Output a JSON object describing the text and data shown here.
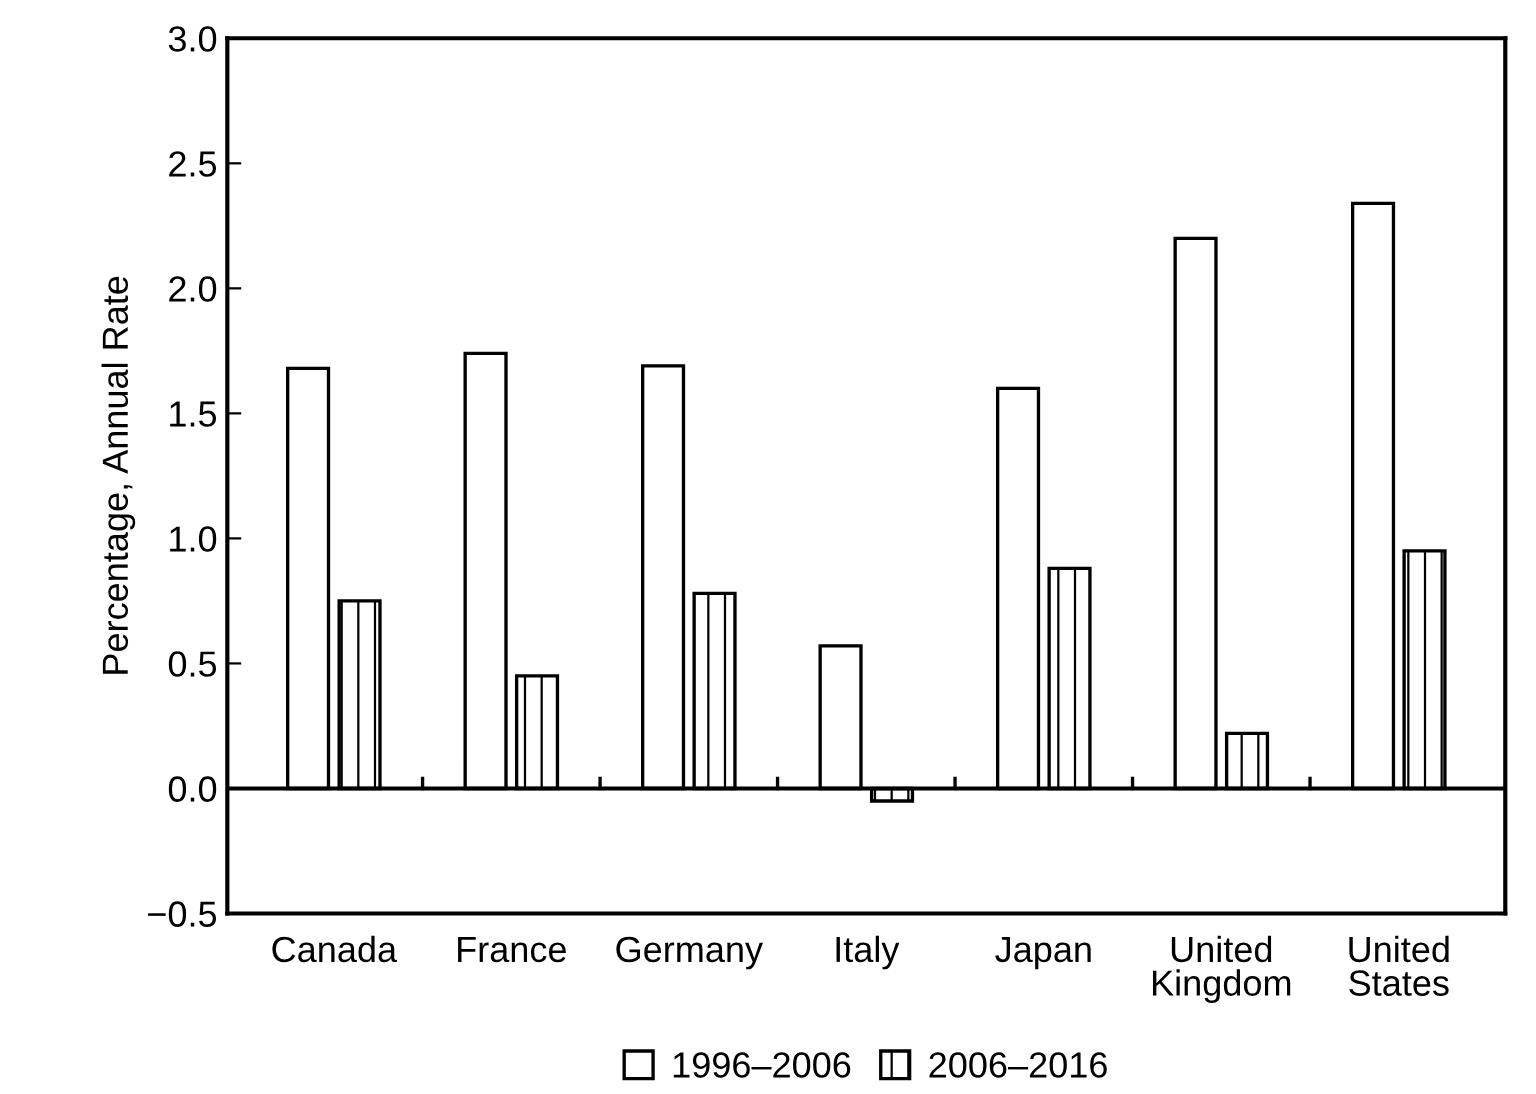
{
  "chart_data": {
    "type": "bar",
    "ylabel": "Percentage, Annual Rate",
    "categories": [
      "Canada",
      "France",
      "Germany",
      "Italy",
      "Japan",
      "United\nKingdom",
      "United\nStates"
    ],
    "series": [
      {
        "name": "1996–2006",
        "color": "#ffffff",
        "values": [
          1.68,
          1.74,
          1.69,
          0.57,
          1.6,
          2.2,
          2.34
        ]
      },
      {
        "name": "2006–2016",
        "color": "#000000",
        "values": [
          0.75,
          0.45,
          0.78,
          -0.05,
          0.88,
          0.22,
          0.95
        ]
      }
    ],
    "ylim": [
      -0.5,
      3.0
    ],
    "yticks": [
      {
        "value": -0.5,
        "label": "−0.5"
      },
      {
        "value": 0,
        "label": "0.0"
      },
      {
        "value": 0.5,
        "label": "0.5"
      },
      {
        "value": 1,
        "label": "1.0"
      },
      {
        "value": 1.5,
        "label": "1.5"
      },
      {
        "value": 2,
        "label": "2.0"
      },
      {
        "value": 2.5,
        "label": "2.5"
      },
      {
        "value": 3,
        "label": "3.0"
      }
    ],
    "ref_lines": [
      {
        "axis": "y",
        "value": 0,
        "color": "#000000"
      }
    ],
    "legend": "bottom"
  }
}
